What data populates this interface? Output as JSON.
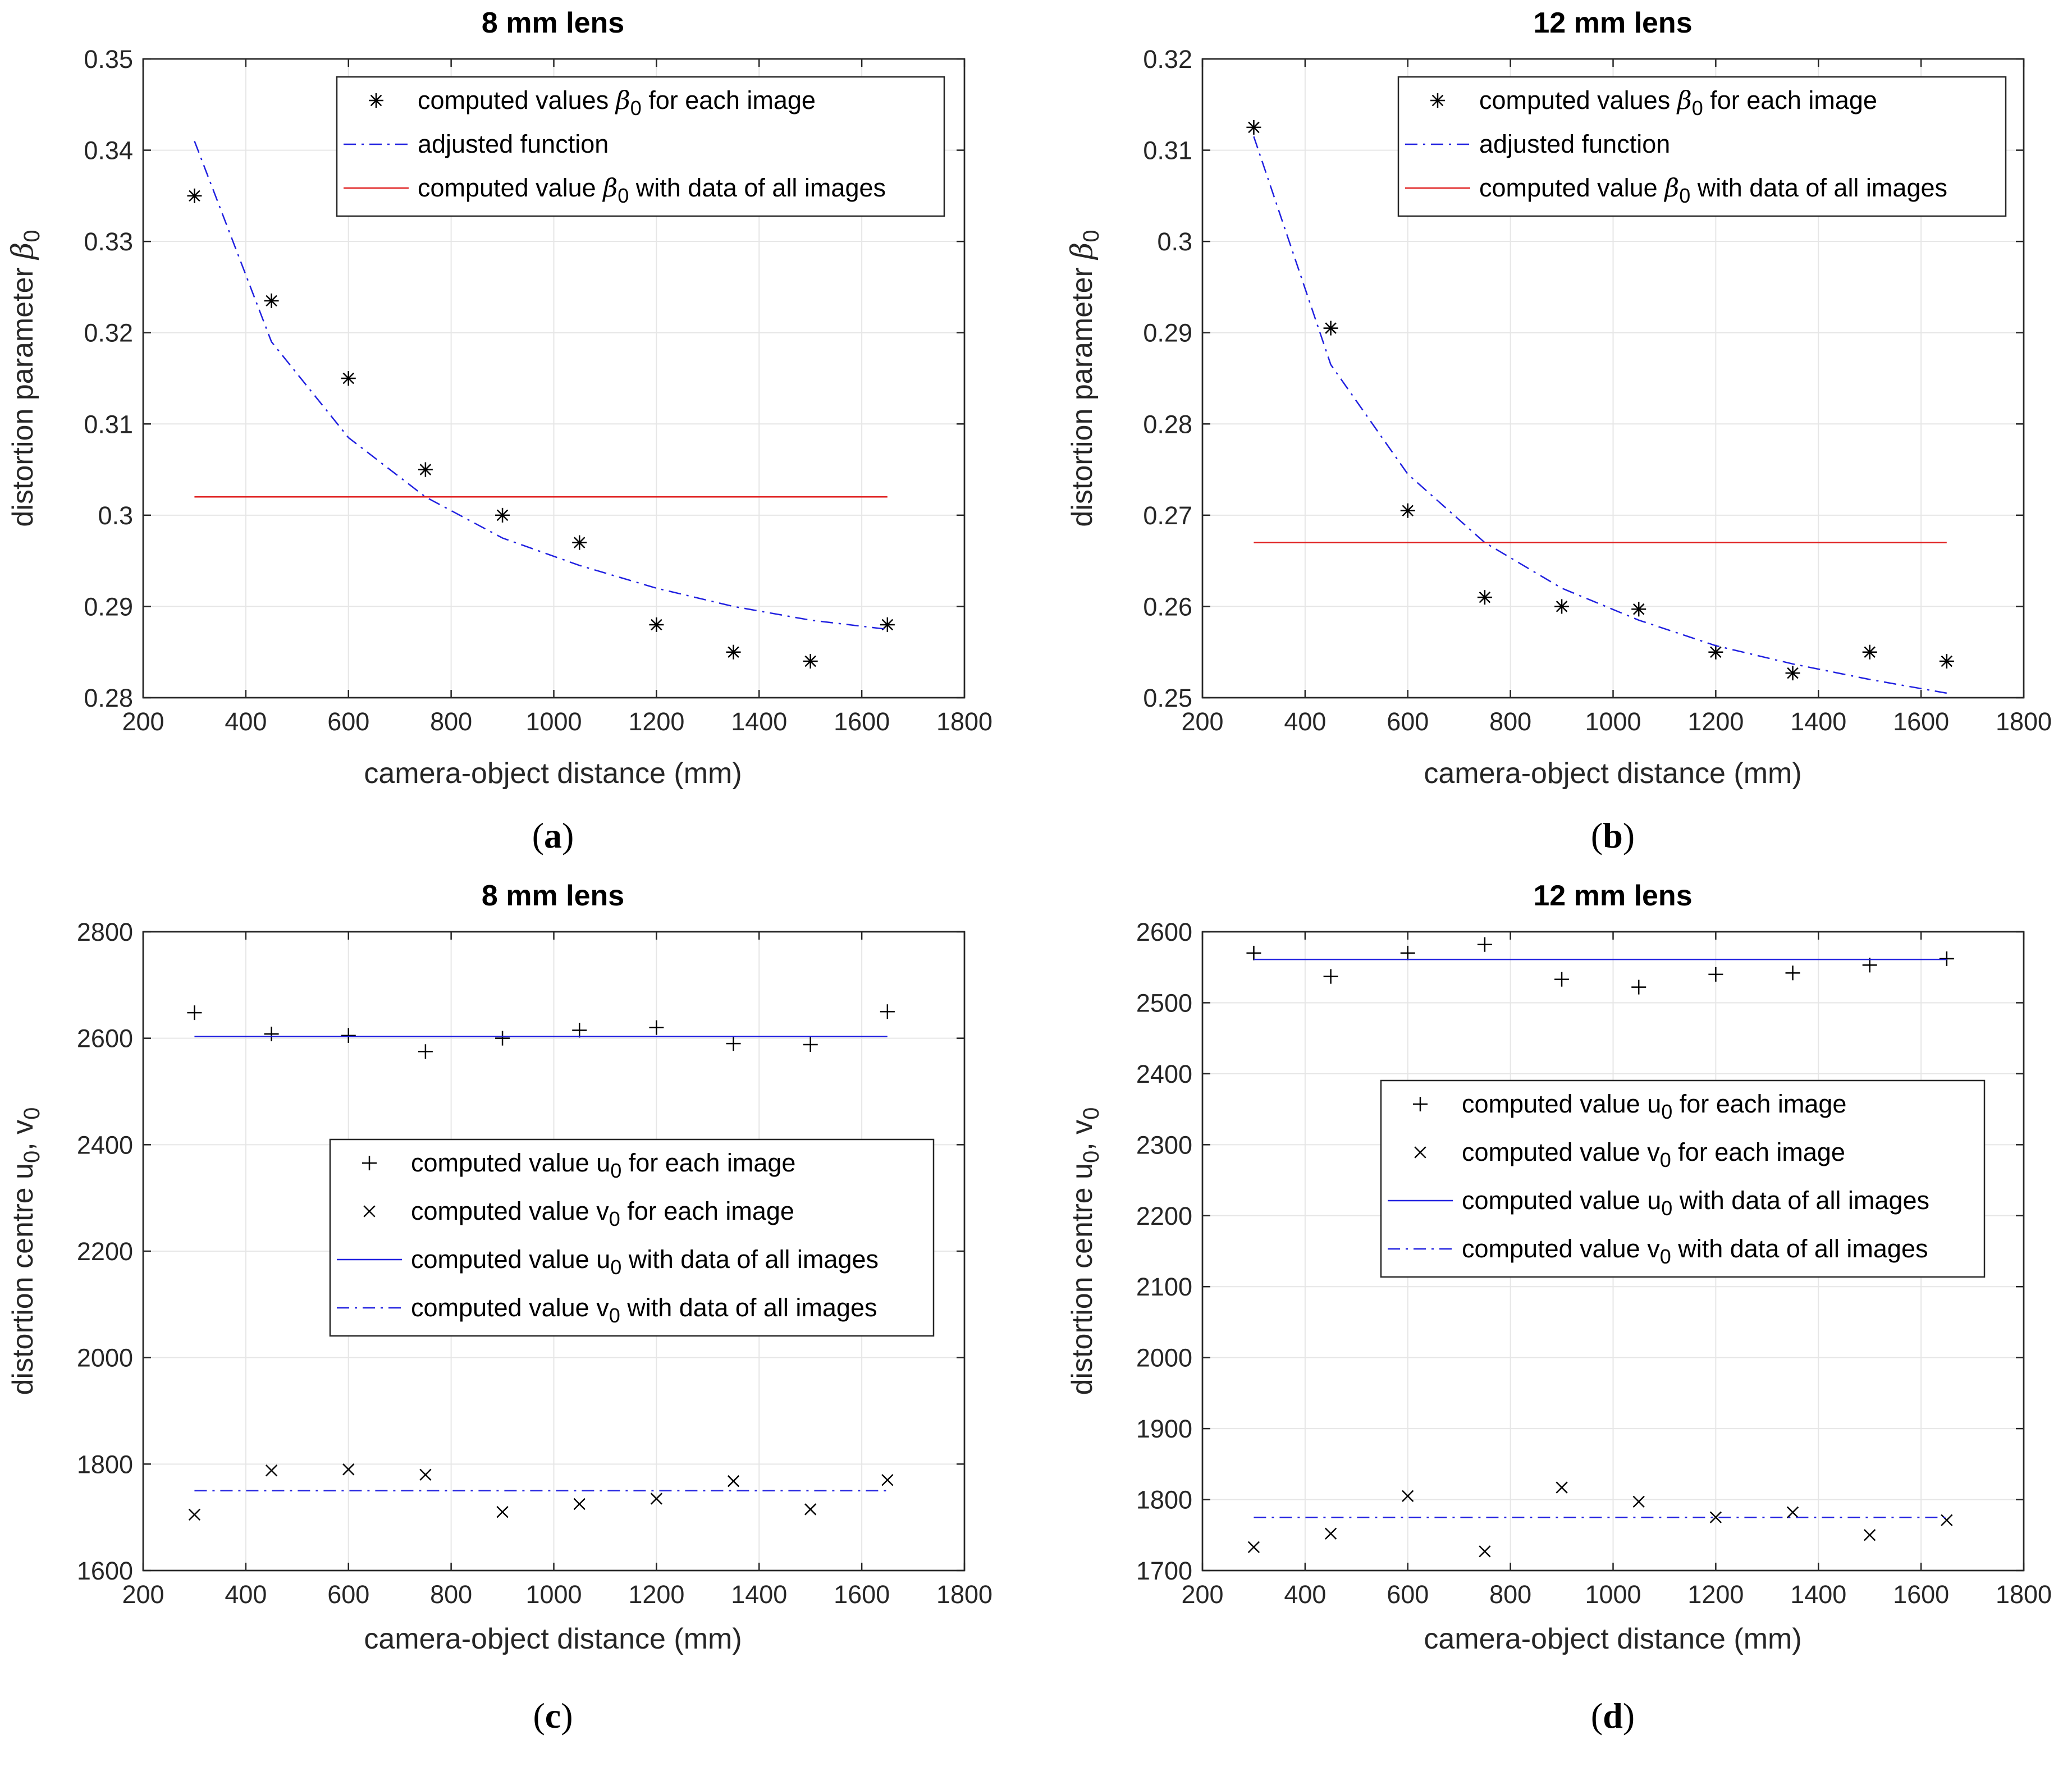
{
  "colors": {
    "fit": "#2020e0",
    "hline": "#e02020",
    "marker": "#000000",
    "axis": "#262626"
  },
  "chart_data": [
    {
      "id": "a",
      "type": "scatter",
      "title": "8 mm lens",
      "sublabel": "(a)",
      "xlabel": "camera-object distance (mm)",
      "ylabel": "distortion parameter β",
      "ylabel_sub": "0",
      "xlim": [
        200,
        1800
      ],
      "ylim": [
        0.28,
        0.35
      ],
      "xticks": [
        200,
        400,
        600,
        800,
        1000,
        1200,
        1400,
        1600,
        1800
      ],
      "yticks": [
        0.28,
        0.29,
        0.3,
        0.31,
        0.32,
        0.33,
        0.34,
        0.35
      ],
      "ytick_labels": [
        "0.28",
        "0.29",
        "0.3",
        "0.31",
        "0.32",
        "0.33",
        "0.34",
        "0.35"
      ],
      "legend_position": "top-right",
      "series": [
        {
          "name": "computed values β0 for each image",
          "label_main": "computed values ",
          "label_sym": "β",
          "label_sub": "0",
          "label_tail": " for each image",
          "kind": "marker",
          "marker": "asterisk",
          "x": [
            300,
            450,
            600,
            750,
            900,
            1050,
            1200,
            1350,
            1500,
            1650
          ],
          "y": [
            0.335,
            0.3235,
            0.315,
            0.305,
            0.3,
            0.297,
            0.288,
            0.285,
            0.284,
            0.288
          ]
        },
        {
          "name": "adjusted function",
          "label_main": "adjusted function",
          "kind": "line",
          "dash": "dashdot",
          "color": "fit",
          "x": [
            300,
            450,
            600,
            750,
            900,
            1050,
            1200,
            1350,
            1500,
            1650
          ],
          "y": [
            0.341,
            0.319,
            0.3085,
            0.302,
            0.2975,
            0.2945,
            0.292,
            0.29,
            0.2885,
            0.2875
          ]
        },
        {
          "name": "computed value β0 with data of all images",
          "label_main": "computed value ",
          "label_sym": "β",
          "label_sub": "0",
          "label_tail": " with data of all images",
          "kind": "line",
          "dash": "solid",
          "color": "hline",
          "x": [
            300,
            1650
          ],
          "y": [
            0.302,
            0.302
          ]
        }
      ]
    },
    {
      "id": "b",
      "type": "scatter",
      "title": "12 mm lens",
      "sublabel": "(b)",
      "xlabel": "camera-object distance (mm)",
      "ylabel": "distortion parameter β",
      "ylabel_sub": "0",
      "xlim": [
        200,
        1800
      ],
      "ylim": [
        0.25,
        0.32
      ],
      "xticks": [
        200,
        400,
        600,
        800,
        1000,
        1200,
        1400,
        1600,
        1800
      ],
      "yticks": [
        0.25,
        0.26,
        0.27,
        0.28,
        0.29,
        0.3,
        0.31,
        0.32
      ],
      "ytick_labels": [
        "0.25",
        "0.26",
        "0.27",
        "0.28",
        "0.29",
        "0.3",
        "0.31",
        "0.32"
      ],
      "legend_position": "top-right",
      "series": [
        {
          "name": "computed values β0 for each image",
          "label_main": "computed values ",
          "label_sym": "β",
          "label_sub": "0",
          "label_tail": " for each image",
          "kind": "marker",
          "marker": "asterisk",
          "x": [
            300,
            450,
            600,
            750,
            900,
            1050,
            1200,
            1350,
            1500,
            1650
          ],
          "y": [
            0.3125,
            0.2905,
            0.2705,
            0.261,
            0.26,
            0.2597,
            0.255,
            0.2527,
            0.255,
            0.254
          ]
        },
        {
          "name": "adjusted function",
          "label_main": "adjusted function",
          "kind": "line",
          "dash": "dashdot",
          "color": "fit",
          "x": [
            300,
            450,
            600,
            750,
            900,
            1050,
            1200,
            1350,
            1500,
            1650
          ],
          "y": [
            0.3115,
            0.2865,
            0.2745,
            0.267,
            0.262,
            0.2585,
            0.2557,
            0.2537,
            0.252,
            0.2505
          ]
        },
        {
          "name": "computed value β0 with data of all images",
          "label_main": "computed value ",
          "label_sym": "β",
          "label_sub": "0",
          "label_tail": " with data of all images",
          "kind": "line",
          "dash": "solid",
          "color": "hline",
          "x": [
            300,
            1650
          ],
          "y": [
            0.267,
            0.267
          ]
        }
      ]
    },
    {
      "id": "c",
      "type": "scatter",
      "title": "8 mm lens",
      "sublabel": "(c)",
      "xlabel": "camera-object distance (mm)",
      "ylabel": "distortion centre u",
      "ylabel_sub": "0",
      "ylabel_tail": ", v",
      "ylabel_sub2": "0",
      "xlim": [
        200,
        1800
      ],
      "ylim": [
        1600,
        2800
      ],
      "xticks": [
        200,
        400,
        600,
        800,
        1000,
        1200,
        1400,
        1600,
        1800
      ],
      "yticks": [
        1600,
        1800,
        2000,
        2200,
        2400,
        2600,
        2800
      ],
      "ytick_labels": [
        "1600",
        "1800",
        "2000",
        "2200",
        "2400",
        "2600",
        "2800"
      ],
      "legend_position": "center-right",
      "series": [
        {
          "name": "computed value u0 for each image",
          "label_main": "computed value u",
          "label_sub": "0",
          "label_tail": " for each image",
          "kind": "marker",
          "marker": "plus",
          "x": [
            300,
            450,
            600,
            750,
            900,
            1050,
            1200,
            1350,
            1500,
            1650
          ],
          "y": [
            2648,
            2608,
            2605,
            2575,
            2600,
            2615,
            2620,
            2590,
            2588,
            2650
          ]
        },
        {
          "name": "computed value v0 for each image",
          "label_main": "computed value v",
          "label_sub": "0",
          "label_tail": " for each image",
          "kind": "marker",
          "marker": "cross",
          "x": [
            300,
            450,
            600,
            750,
            900,
            1050,
            1200,
            1350,
            1500,
            1650
          ],
          "y": [
            1705,
            1788,
            1790,
            1780,
            1710,
            1725,
            1735,
            1768,
            1715,
            1770
          ]
        },
        {
          "name": "computed value u0 with data of all images",
          "label_main": "computed value u",
          "label_sub": "0",
          "label_tail": " with data of all images",
          "kind": "line",
          "dash": "solid",
          "color": "fit",
          "x": [
            300,
            1650
          ],
          "y": [
            2603,
            2603
          ]
        },
        {
          "name": "computed value v0 with data of all images",
          "label_main": "computed value v",
          "label_sub": "0",
          "label_tail": " with data of all images",
          "kind": "line",
          "dash": "dashdot",
          "color": "fit",
          "x": [
            300,
            1650
          ],
          "y": [
            1750,
            1750
          ]
        }
      ]
    },
    {
      "id": "d",
      "type": "scatter",
      "title": "12 mm lens",
      "sublabel": "(d)",
      "xlabel": "camera-object distance (mm)",
      "ylabel": "distortion centre u",
      "ylabel_sub": "0",
      "ylabel_tail": ", v",
      "ylabel_sub2": "0",
      "xlim": [
        200,
        1800
      ],
      "ylim": [
        1700,
        2600
      ],
      "xticks": [
        200,
        400,
        600,
        800,
        1000,
        1200,
        1400,
        1600,
        1800
      ],
      "yticks": [
        1700,
        1800,
        1900,
        2000,
        2100,
        2200,
        2300,
        2400,
        2500,
        2600
      ],
      "ytick_labels": [
        "1700",
        "1800",
        "1900",
        "2000",
        "2100",
        "2200",
        "2300",
        "2400",
        "2500",
        "2600"
      ],
      "legend_position": "center-right",
      "series": [
        {
          "name": "computed value u0 for each image",
          "label_main": "computed value u",
          "label_sub": "0",
          "label_tail": " for each image",
          "kind": "marker",
          "marker": "plus",
          "x": [
            300,
            450,
            600,
            750,
            900,
            1050,
            1200,
            1350,
            1500,
            1650
          ],
          "y": [
            2570,
            2537,
            2570,
            2582,
            2533,
            2522,
            2540,
            2542,
            2553,
            2562
          ]
        },
        {
          "name": "computed value v0 for each image",
          "label_main": "computed value v",
          "label_sub": "0",
          "label_tail": " for each image",
          "kind": "marker",
          "marker": "cross",
          "x": [
            300,
            450,
            600,
            750,
            900,
            1050,
            1200,
            1350,
            1500,
            1650
          ],
          "y": [
            1733,
            1752,
            1805,
            1727,
            1817,
            1797,
            1775,
            1782,
            1750,
            1771
          ]
        },
        {
          "name": "computed value u0 with data of all images",
          "label_main": "computed value u",
          "label_sub": "0",
          "label_tail": " with data of all images",
          "kind": "line",
          "dash": "solid",
          "color": "fit",
          "x": [
            300,
            1650
          ],
          "y": [
            2561,
            2561
          ]
        },
        {
          "name": "computed value v0 with data of all images",
          "label_main": "computed value v",
          "label_sub": "0",
          "label_tail": " with data of all images",
          "kind": "line",
          "dash": "dashdot",
          "color": "fit",
          "x": [
            300,
            1650
          ],
          "y": [
            1775,
            1775
          ]
        }
      ]
    }
  ]
}
